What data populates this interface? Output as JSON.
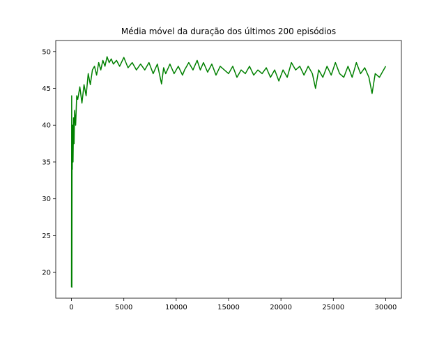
{
  "chart_data": {
    "type": "line",
    "title": "Média móvel da duração dos últimos 200 episódios",
    "xlabel": "",
    "ylabel": "",
    "xlim": [
      -1500,
      31500
    ],
    "ylim": [
      16.5,
      51.5
    ],
    "xticks": [
      0,
      5000,
      10000,
      15000,
      20000,
      25000,
      30000
    ],
    "xtick_labels": [
      "0",
      "5000",
      "10000",
      "15000",
      "20000",
      "25000",
      "30000"
    ],
    "yticks": [
      20,
      25,
      30,
      35,
      40,
      45,
      50
    ],
    "ytick_labels": [
      "20",
      "25",
      "30",
      "35",
      "40",
      "45",
      "50"
    ],
    "grid": false,
    "legend": "none",
    "series_color": "#008000",
    "series": [
      {
        "x": [
          0,
          20,
          40,
          60,
          80,
          100,
          150,
          200,
          250,
          300,
          400,
          500,
          600,
          800,
          1000,
          1200,
          1400,
          1600,
          1800,
          2000,
          2200,
          2400,
          2600,
          2800,
          3000,
          3200,
          3400,
          3600,
          3800,
          4000,
          4300,
          4600,
          5000,
          5400,
          5800,
          6200,
          6600,
          7000,
          7400,
          7800,
          8200,
          8600,
          8800,
          9000,
          9400,
          9800,
          10200,
          10600,
          10800,
          11200,
          11600,
          12000,
          12300,
          12600,
          13000,
          13400,
          13800,
          14200,
          14600,
          15000,
          15400,
          15800,
          16200,
          16600,
          17000,
          17400,
          17800,
          18200,
          18600,
          19000,
          19400,
          19800,
          20200,
          20600,
          21000,
          21400,
          21800,
          22200,
          22600,
          23000,
          23300,
          23600,
          24000,
          24400,
          24800,
          25200,
          25600,
          26000,
          26400,
          26800,
          27200,
          27600,
          28000,
          28400,
          28700,
          29000,
          29400,
          29800,
          30000
        ],
        "y": [
          18.0,
          44.0,
          18.0,
          38.0,
          34.0,
          40.0,
          35.0,
          41.0,
          37.5,
          42.0,
          40.0,
          44.0,
          43.5,
          45.2,
          43.0,
          45.5,
          44.0,
          47.0,
          45.5,
          47.5,
          48.0,
          46.8,
          48.5,
          47.5,
          48.8,
          48.0,
          49.3,
          48.5,
          49.0,
          48.3,
          48.8,
          48.0,
          49.2,
          47.8,
          48.5,
          47.5,
          48.3,
          47.5,
          48.5,
          47.0,
          48.3,
          45.6,
          47.8,
          47.0,
          48.3,
          47.0,
          48.0,
          46.8,
          47.5,
          48.5,
          47.5,
          48.8,
          47.5,
          48.5,
          47.2,
          48.3,
          46.8,
          48.0,
          47.5,
          47.0,
          48.0,
          46.5,
          47.5,
          47.0,
          48.0,
          46.8,
          47.5,
          47.0,
          47.8,
          46.5,
          47.5,
          46.0,
          47.5,
          46.5,
          48.5,
          47.5,
          48.0,
          46.8,
          48.0,
          47.0,
          45.0,
          47.5,
          46.5,
          48.0,
          46.8,
          48.5,
          47.0,
          46.5,
          48.0,
          46.5,
          48.5,
          47.0,
          47.8,
          46.5,
          44.3,
          47.0,
          46.5,
          47.5,
          48.0
        ]
      }
    ]
  }
}
